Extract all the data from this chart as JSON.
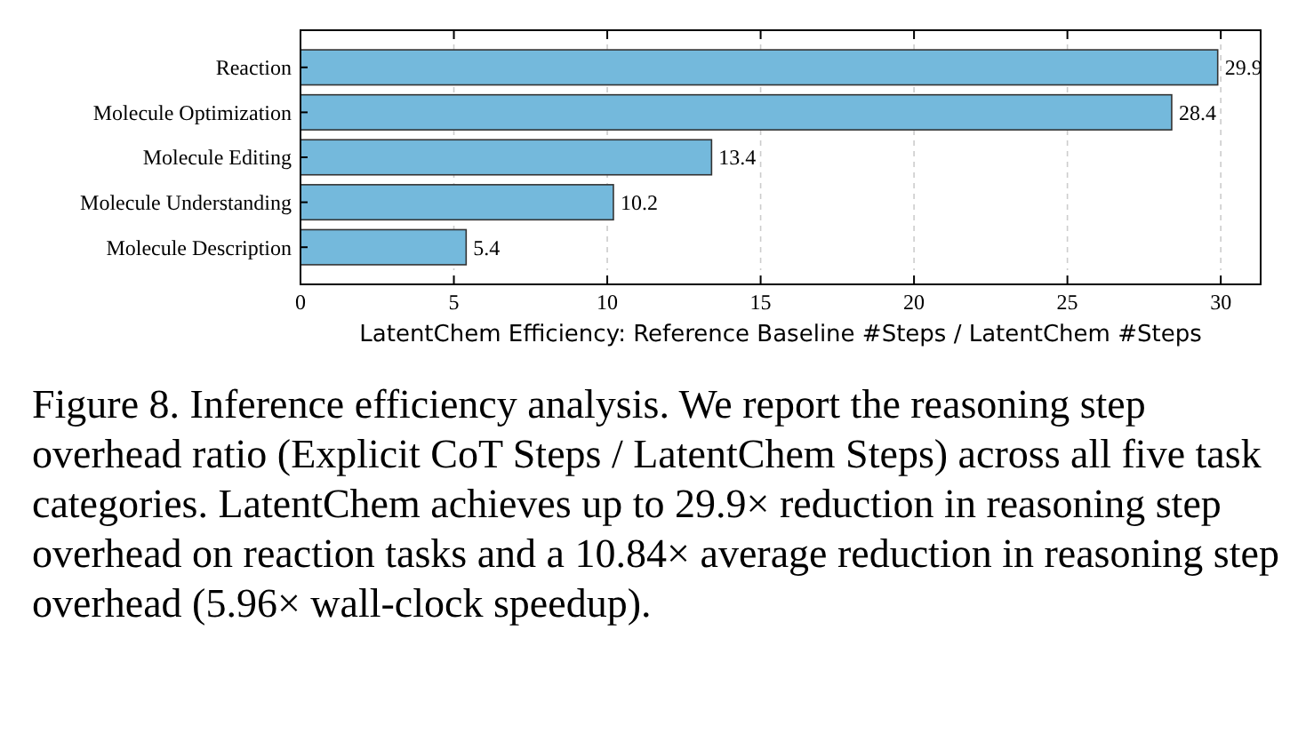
{
  "chart_data": {
    "type": "bar",
    "orientation": "horizontal",
    "categories": [
      "Reaction",
      "Molecule Optimization",
      "Molecule Editing",
      "Molecule Understanding",
      "Molecule Description"
    ],
    "values": [
      29.9,
      28.4,
      13.4,
      10.2,
      5.4
    ],
    "color": "#74b9dc",
    "data_labels": true,
    "xlim": [
      0,
      31.3
    ],
    "xticks": [
      0,
      5,
      10,
      15,
      20,
      25,
      30
    ],
    "grid": "x",
    "xlabel": "LatentChem Efficiency: Reference Baseline #Steps / LatentChem #Steps",
    "annotations": [
      "Figure 8. Inference efficiency analysis. We report the reasoning step overhead ratio (Explicit CoT Steps / LatentChem Steps) across all five task categories. LatentChem achieves up to 29.9× reduction in reasoning step overhead on reaction tasks and a 10.84× average reduction in reasoning step overhead (5.96× wall-clock speedup)."
    ]
  }
}
